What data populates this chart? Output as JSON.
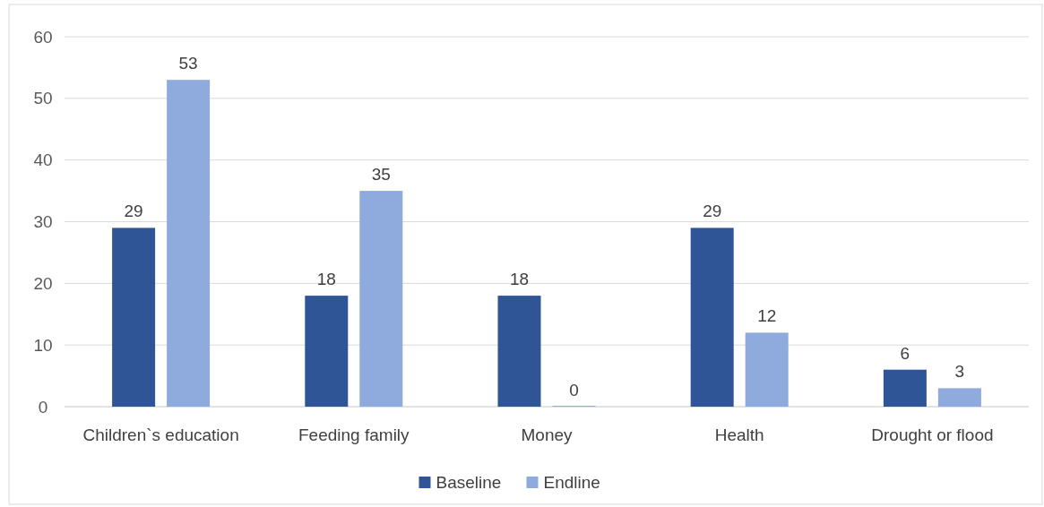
{
  "chart_data": {
    "type": "bar",
    "categories": [
      "Children`s education",
      "Feeding family",
      "Money",
      "Health",
      "Drought or flood"
    ],
    "series": [
      {
        "name": "Baseline",
        "color": "#2f5597",
        "values": [
          29,
          18,
          18,
          29,
          6
        ]
      },
      {
        "name": "Endline",
        "color": "#8faadc",
        "values": [
          53,
          35,
          0,
          12,
          3
        ]
      }
    ],
    "ylim": [
      0,
      60
    ],
    "yticks": [
      0,
      10,
      20,
      30,
      40,
      50,
      60
    ],
    "grid": "y",
    "legend": "bottom",
    "data_labels": true
  }
}
